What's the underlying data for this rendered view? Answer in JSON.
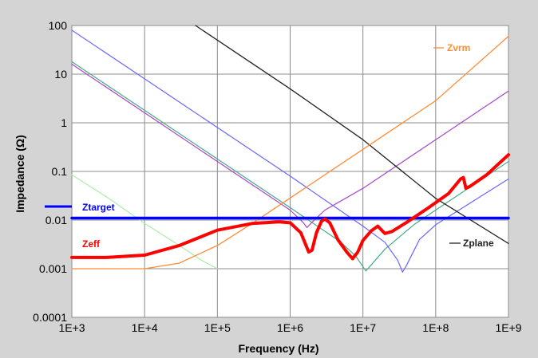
{
  "chart_data": {
    "type": "line",
    "xscale": "log",
    "yscale": "log",
    "xlim": [
      1000,
      1000000000
    ],
    "ylim": [
      0.0001,
      100
    ],
    "xlabel": "Frequency (Hz)",
    "ylabel": "Impedance (Ω)",
    "x_ticks": [
      "1E+3",
      "1E+4",
      "1E+5",
      "1E+6",
      "1E+7",
      "1E+8",
      "1E+9"
    ],
    "y_ticks": [
      "0.0001",
      "0.001",
      "0.01",
      "0.1",
      "1",
      "10",
      "100"
    ],
    "grid": true,
    "series": [
      {
        "name": "Zeff",
        "color": "#ff0000",
        "points": [
          [
            1000,
            0.0017
          ],
          [
            3000,
            0.0017
          ],
          [
            10000,
            0.0019
          ],
          [
            30000,
            0.003
          ],
          [
            100000,
            0.0062
          ],
          [
            300000,
            0.0085
          ],
          [
            700000,
            0.0092
          ],
          [
            1000000,
            0.0088
          ],
          [
            1400000,
            0.0055
          ],
          [
            1800000,
            0.0022
          ],
          [
            2000000,
            0.0024
          ],
          [
            2300000,
            0.0055
          ],
          [
            2700000,
            0.0095
          ],
          [
            3000000,
            0.0105
          ],
          [
            3500000,
            0.0088
          ],
          [
            4500000,
            0.004
          ],
          [
            6000000,
            0.0022
          ],
          [
            7200000,
            0.0016
          ],
          [
            8500000,
            0.0022
          ],
          [
            10000000,
            0.0038
          ],
          [
            13000000,
            0.006
          ],
          [
            16000000,
            0.0075
          ],
          [
            20000000,
            0.0053
          ],
          [
            25000000,
            0.0058
          ],
          [
            40000000,
            0.009
          ],
          [
            80000000,
            0.018
          ],
          [
            150000000,
            0.035
          ],
          [
            220000000,
            0.07
          ],
          [
            240000000,
            0.075
          ],
          [
            260000000,
            0.045
          ],
          [
            300000000,
            0.05
          ],
          [
            500000000,
            0.085
          ],
          [
            1000000000,
            0.22
          ]
        ]
      },
      {
        "name": "Ztarget",
        "color": "#0000ff",
        "points": [
          [
            1000,
            0.011
          ],
          [
            1000000000,
            0.011
          ]
        ]
      },
      {
        "name": "Zvrm",
        "color": "#ff8c33",
        "points": [
          [
            1000,
            0.001
          ],
          [
            10000,
            0.001
          ],
          [
            30000,
            0.0013
          ],
          [
            100000,
            0.003
          ],
          [
            300000,
            0.0085
          ],
          [
            1000000,
            0.0285
          ],
          [
            10000000,
            0.285
          ],
          [
            100000000,
            2.85
          ],
          [
            1000000000,
            60
          ]
        ]
      },
      {
        "name": "Zplane",
        "color": "#222222",
        "points": [
          [
            50000,
            100
          ],
          [
            1000000,
            5
          ],
          [
            10000000,
            0.45
          ],
          [
            100000000,
            0.028
          ],
          [
            1000000000,
            0.0033
          ]
        ]
      },
      {
        "name": "",
        "color": "#6666ff",
        "points": [
          [
            1000,
            80
          ],
          [
            10000,
            8
          ],
          [
            100000,
            0.8
          ],
          [
            1000000,
            0.08
          ],
          [
            10000000,
            0.0075
          ],
          [
            20000000,
            0.0035
          ],
          [
            30000000,
            0.0015
          ],
          [
            35000000,
            0.00085
          ],
          [
            40000000,
            0.0012
          ],
          [
            60000000,
            0.004
          ],
          [
            100000000,
            0.008
          ],
          [
            1000000000,
            0.07
          ]
        ]
      },
      {
        "name": "",
        "color": "#aa44cc",
        "points": [
          [
            1000,
            16
          ],
          [
            10000,
            1.6
          ],
          [
            100000,
            0.16
          ],
          [
            1000000,
            0.016
          ],
          [
            1500000,
            0.009
          ],
          [
            1700000,
            0.007
          ],
          [
            2000000,
            0.009
          ],
          [
            3000000,
            0.016
          ],
          [
            10000000,
            0.045
          ],
          [
            100000000,
            0.45
          ],
          [
            1000000000,
            4.5
          ]
        ]
      },
      {
        "name": "",
        "color": "#44aa88",
        "points": [
          [
            1000,
            18
          ],
          [
            10000,
            1.8
          ],
          [
            100000,
            0.18
          ],
          [
            1000000,
            0.018
          ],
          [
            5000000,
            0.0035
          ],
          [
            8000000,
            0.0018
          ],
          [
            11000000,
            0.0009
          ],
          [
            13000000,
            0.0012
          ],
          [
            20000000,
            0.0025
          ],
          [
            50000000,
            0.008
          ],
          [
            100000000,
            0.016
          ],
          [
            1000000000,
            0.16
          ]
        ]
      },
      {
        "name": "",
        "color": "#aaeeaa",
        "points": [
          [
            1000,
            0.085
          ],
          [
            3000,
            0.03
          ],
          [
            10000,
            0.0085
          ],
          [
            30000,
            0.003
          ],
          [
            60000,
            0.0015
          ],
          [
            100000,
            0.001
          ]
        ]
      }
    ]
  }
}
